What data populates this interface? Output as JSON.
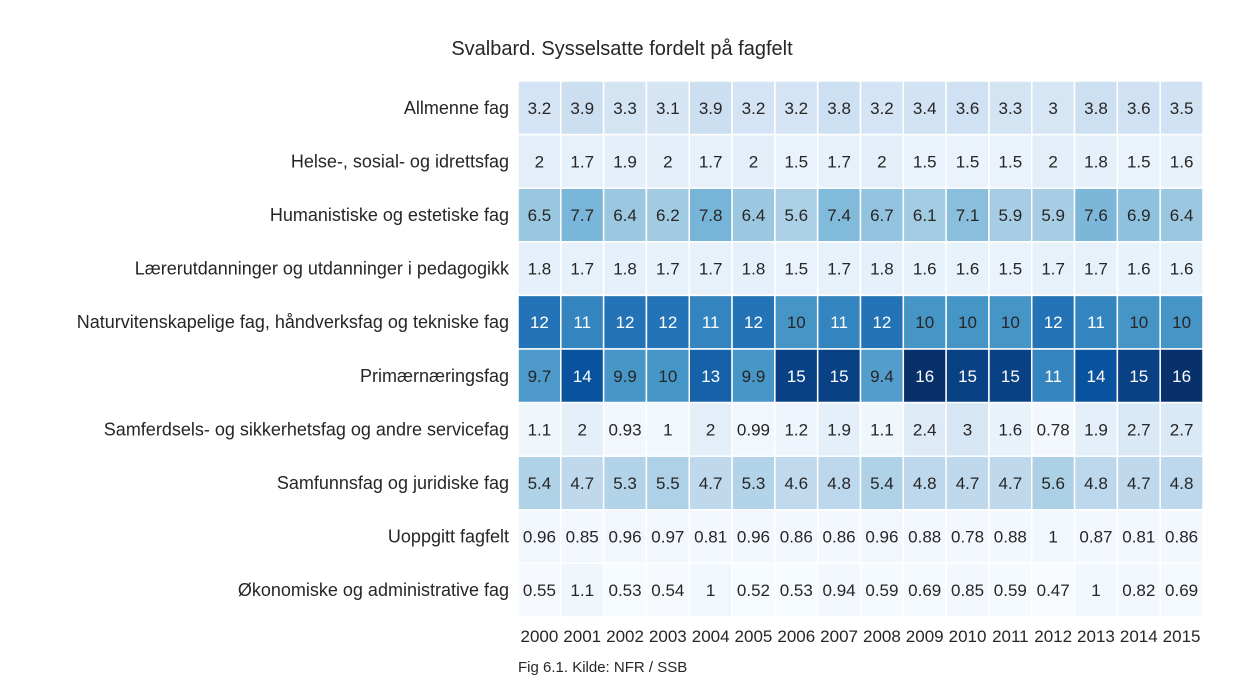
{
  "chart_data": {
    "type": "heatmap",
    "title": "Svalbard. Sysselsatte fordelt på fagfelt",
    "caption": "Fig 6.1. Kilde: NFR / SSB",
    "xlabel": "",
    "ylabel": "",
    "colormap": "Blues",
    "value_range": [
      0.47,
      16
    ],
    "grid": false,
    "legend": "none",
    "x": [
      "2000",
      "2001",
      "2002",
      "2003",
      "2004",
      "2005",
      "2006",
      "2007",
      "2008",
      "2009",
      "2010",
      "2011",
      "2012",
      "2013",
      "2014",
      "2015"
    ],
    "y": [
      "Allmenne fag",
      "Helse-, sosial- og idrettsfag",
      "Humanistiske og estetiske fag",
      "Lærerutdanninger og utdanninger i pedagogikk",
      "Naturvitenskapelige fag, håndverksfag og tekniske fag",
      "Primærnæringsfag",
      "Samferdsels- og sikkerhetsfag og andre servicefag",
      "Samfunnsfag og juridiske fag",
      "Uoppgitt fagfelt",
      "Økonomiske og administrative fag"
    ],
    "values": [
      [
        3.2,
        3.9,
        3.3,
        3.1,
        3.9,
        3.2,
        3.2,
        3.8,
        3.2,
        3.4,
        3.6,
        3.3,
        3,
        3.8,
        3.6,
        3.5
      ],
      [
        2,
        1.7,
        1.9,
        2,
        1.7,
        2,
        1.5,
        1.7,
        2,
        1.5,
        1.5,
        1.5,
        2,
        1.8,
        1.5,
        1.6
      ],
      [
        6.5,
        7.7,
        6.4,
        6.2,
        7.8,
        6.4,
        5.6,
        7.4,
        6.7,
        6.1,
        7.1,
        5.9,
        5.9,
        7.6,
        6.9,
        6.4
      ],
      [
        1.8,
        1.7,
        1.8,
        1.7,
        1.7,
        1.8,
        1.5,
        1.7,
        1.8,
        1.6,
        1.6,
        1.5,
        1.7,
        1.7,
        1.6,
        1.6
      ],
      [
        12,
        11,
        12,
        12,
        11,
        12,
        10,
        11,
        12,
        10,
        10,
        10,
        12,
        11,
        10,
        10
      ],
      [
        9.7,
        14,
        9.9,
        10,
        13,
        9.9,
        15,
        15,
        9.4,
        16,
        15,
        15,
        11,
        14,
        15,
        16
      ],
      [
        1.1,
        2,
        0.93,
        1,
        2,
        0.99,
        1.2,
        1.9,
        1.1,
        2.4,
        3,
        1.6,
        0.78,
        1.9,
        2.7,
        2.7
      ],
      [
        5.4,
        4.7,
        5.3,
        5.5,
        4.7,
        5.3,
        4.6,
        4.8,
        5.4,
        4.8,
        4.7,
        4.7,
        5.6,
        4.8,
        4.7,
        4.8
      ],
      [
        0.96,
        0.85,
        0.96,
        0.97,
        0.81,
        0.96,
        0.86,
        0.86,
        0.96,
        0.88,
        0.78,
        0.88,
        1,
        0.87,
        0.81,
        0.86
      ],
      [
        0.55,
        1.1,
        0.53,
        0.54,
        1,
        0.52,
        0.53,
        0.94,
        0.59,
        0.69,
        0.85,
        0.59,
        0.47,
        1,
        0.82,
        0.69
      ]
    ]
  }
}
